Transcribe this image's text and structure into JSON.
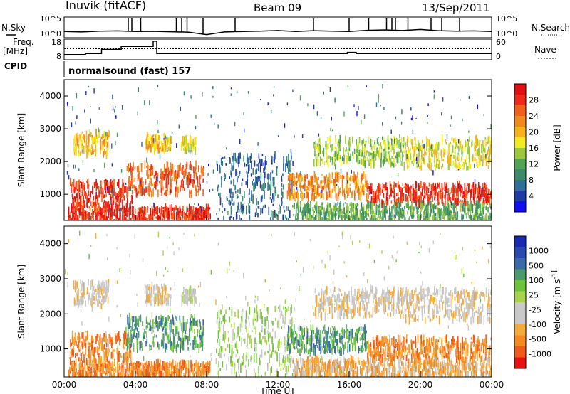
{
  "header": {
    "station": "Inuvik (fitACF)",
    "beam": "Beam 09",
    "date": "13/Sep/2011"
  },
  "side_labels": {
    "nsky": "N.Sky",
    "freq": "Freq.",
    "freq_unit": "[MHz]",
    "cpid": "CPID",
    "nsearch": "N.Search",
    "nave": "Nave"
  },
  "cpid_text": "normalsound (fast) 157",
  "colors": {
    "power": [
      "#1010f0",
      "#203aa8",
      "#2f6f95",
      "#3d8a6a",
      "#52a455",
      "#9bc83f",
      "#f0ec20",
      "#f6b31a",
      "#f08a1c",
      "#f0621c",
      "#ee2a18",
      "#e01010"
    ],
    "velocity": [
      "#e81010",
      "#f05a1a",
      "#f58a20",
      "#f5ab3a",
      "#c9c9c9",
      "#c9c9c9",
      "#a8d44c",
      "#6cc43a",
      "#4a9a6a",
      "#3a6aa8",
      "#2a4ab0",
      "#1a2ab4"
    ]
  },
  "chart_data": [
    {
      "type": "line",
      "name": "noise-panel",
      "ylabel_left": "N.Sky",
      "ylabel_right": "N.Search",
      "yticks_left": [
        "10^5",
        "10^0"
      ],
      "yticks_right": [
        "10^5",
        "10^0"
      ],
      "series": [
        {
          "values": [
            0.3,
            0.28,
            0.32,
            0.33,
            0.3,
            0.31,
            0.29,
            0.27,
            0.15,
            0.28,
            0.3,
            0.32,
            0.35,
            0.3,
            0.34,
            0.32,
            0.3,
            0.36,
            0.38,
            0.35,
            0.4,
            0.34,
            0.32,
            0.33,
            0.3
          ]
        }
      ],
      "spikes_hours": [
        3.6,
        3.8,
        4.3,
        6.3,
        6.6,
        6.9,
        7.8,
        9.6,
        14.0,
        16.0,
        17.1,
        18.1,
        18.4,
        18.6,
        19.3,
        20.6,
        21.2,
        22.2
      ]
    },
    {
      "type": "line",
      "name": "freq-nave-panel",
      "ylabel_left": "Freq. [MHz]",
      "ylabel_right": "Nave",
      "yticks_left": [
        "18",
        "8"
      ],
      "yticks_right": [
        "60",
        "0"
      ],
      "freq_steps": [
        {
          "from": 0,
          "to": 1.2,
          "value": 10.5
        },
        {
          "from": 1.2,
          "to": 2.1,
          "value": 11.0
        },
        {
          "from": 2.1,
          "to": 3.2,
          "value": 13.0
        },
        {
          "from": 3.2,
          "to": 5.0,
          "value": 14.5
        },
        {
          "from": 5.0,
          "to": 5.2,
          "value": 17.0
        },
        {
          "from": 5.2,
          "to": 15.9,
          "value": 11.0
        },
        {
          "from": 15.9,
          "to": 16.4,
          "value": 11.6
        },
        {
          "from": 16.4,
          "to": 24,
          "value": 11.0
        }
      ],
      "nave_level": 32
    },
    {
      "type": "heatmap",
      "name": "power-panel",
      "ylabel": "Slant Range [km]",
      "colorbar_label": "Power [dB]",
      "colorbar_ticks": [
        "28",
        "24",
        "20",
        "16",
        "12",
        "8",
        "4"
      ],
      "ylim": [
        200,
        4500
      ],
      "yticks": [
        "1000",
        "2000",
        "3000",
        "4000"
      ],
      "blobs": [
        {
          "x0": 0.2,
          "x1": 8.2,
          "r0": 200,
          "r1": 600,
          "level": 10
        },
        {
          "x0": 0.3,
          "x1": 3.8,
          "r0": 600,
          "r1": 1400,
          "level": 10
        },
        {
          "x0": 3.5,
          "x1": 7.8,
          "r0": 1000,
          "r1": 1900,
          "level": 9
        },
        {
          "x0": 0.5,
          "x1": 2.5,
          "r0": 2200,
          "r1": 2900,
          "level": 7
        },
        {
          "x0": 4.5,
          "x1": 6.0,
          "r0": 2300,
          "r1": 2800,
          "level": 7
        },
        {
          "x0": 6.5,
          "x1": 7.4,
          "r0": 2300,
          "r1": 2700,
          "level": 6
        },
        {
          "x0": 8.5,
          "x1": 12.8,
          "r0": 200,
          "r1": 2200,
          "level": 2
        },
        {
          "x0": 12.5,
          "x1": 17.0,
          "r0": 900,
          "r1": 1600,
          "level": 8
        },
        {
          "x0": 14.0,
          "x1": 19.0,
          "r0": 1900,
          "r1": 2700,
          "level": 5
        },
        {
          "x0": 17.0,
          "x1": 24.0,
          "r0": 700,
          "r1": 1300,
          "level": 10
        },
        {
          "x0": 19.0,
          "x1": 24.0,
          "r0": 1800,
          "r1": 2700,
          "level": 6
        },
        {
          "x0": 12.8,
          "x1": 24.0,
          "r0": 200,
          "r1": 700,
          "level": 4
        }
      ]
    },
    {
      "type": "heatmap",
      "name": "velocity-panel",
      "ylabel": "Slant Range [km]",
      "xlabel": "Time UT",
      "colorbar_label": "Velocity [m s^-1]",
      "colorbar_ticks": [
        "1000",
        "500",
        "100",
        "25",
        "-25",
        "-100",
        "-500",
        "-1000"
      ],
      "ylim": [
        200,
        4500
      ],
      "yticks": [
        "1000",
        "2000",
        "3000",
        "4000"
      ],
      "xticks": [
        "00:00",
        "04:00",
        "08:00",
        "12:00",
        "16:00",
        "20:00",
        "00:00"
      ],
      "blobs": [
        {
          "x0": 0.2,
          "x1": 8.2,
          "r0": 200,
          "r1": 600,
          "level": 2
        },
        {
          "x0": 0.3,
          "x1": 3.8,
          "r0": 600,
          "r1": 1400,
          "level": 2
        },
        {
          "x0": 3.5,
          "x1": 7.8,
          "r0": 1000,
          "r1": 1900,
          "level": 8
        },
        {
          "x0": 0.5,
          "x1": 2.5,
          "r0": 2200,
          "r1": 2900,
          "level": 4
        },
        {
          "x0": 4.5,
          "x1": 6.0,
          "r0": 2300,
          "r1": 2800,
          "level": 4
        },
        {
          "x0": 6.5,
          "x1": 7.4,
          "r0": 2300,
          "r1": 2700,
          "level": 5
        },
        {
          "x0": 8.5,
          "x1": 12.8,
          "r0": 200,
          "r1": 2200,
          "level": 6
        },
        {
          "x0": 12.5,
          "x1": 17.0,
          "r0": 900,
          "r1": 1600,
          "level": 8
        },
        {
          "x0": 14.0,
          "x1": 19.0,
          "r0": 1900,
          "r1": 2700,
          "level": 4
        },
        {
          "x0": 17.0,
          "x1": 24.0,
          "r0": 700,
          "r1": 1300,
          "level": 2
        },
        {
          "x0": 19.0,
          "x1": 24.0,
          "r0": 1800,
          "r1": 2700,
          "level": 4
        },
        {
          "x0": 12.8,
          "x1": 24.0,
          "r0": 200,
          "r1": 700,
          "level": 3
        }
      ]
    }
  ]
}
